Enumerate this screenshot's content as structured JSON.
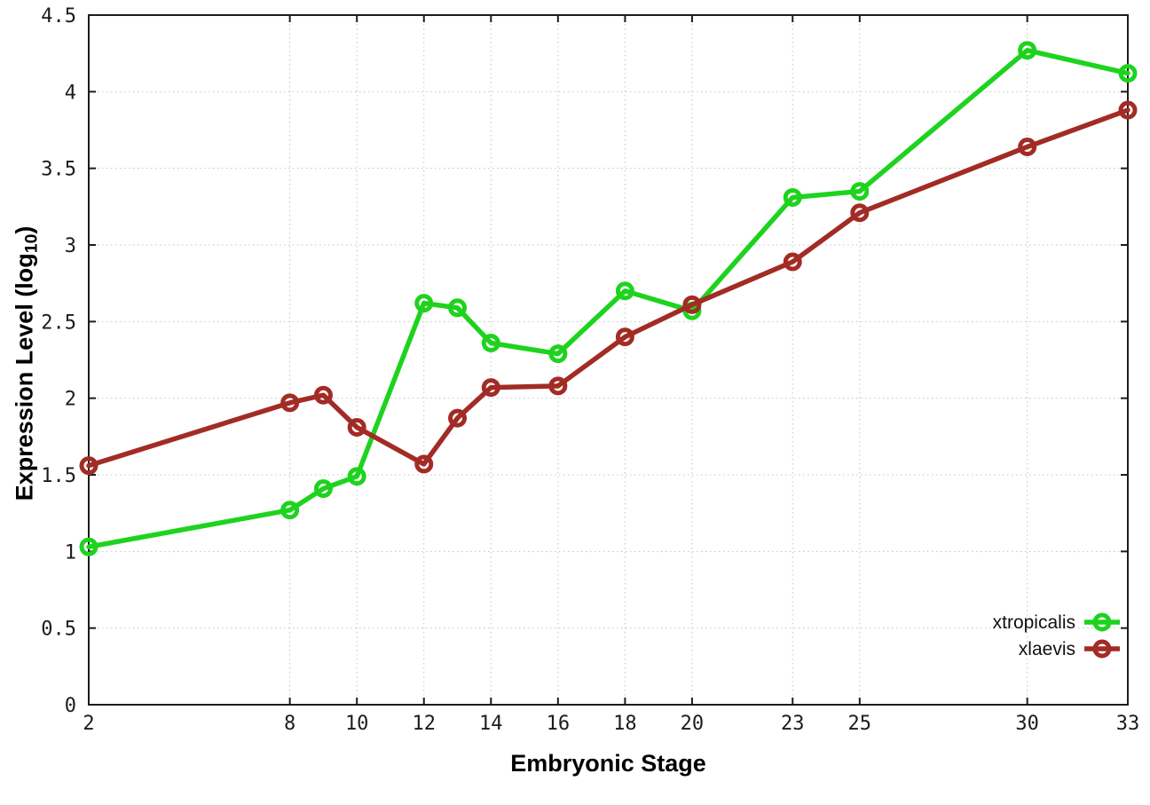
{
  "chart_data": {
    "type": "line",
    "title": "",
    "xlabel": "Embryonic Stage",
    "ylabel_parts": {
      "prefix": "Expression Level (log",
      "sub": "10",
      "suffix": ")"
    },
    "xlim": [
      2,
      33
    ],
    "ylim": [
      0,
      4.5
    ],
    "x_ticks": [
      2,
      8,
      10,
      12,
      14,
      16,
      18,
      20,
      23,
      25,
      30,
      33
    ],
    "y_ticks": [
      0,
      0.5,
      1,
      1.5,
      2,
      2.5,
      3,
      3.5,
      4,
      4.5
    ],
    "grid": true,
    "legend_position": "inside-bottom-right",
    "x": [
      2,
      8,
      9,
      10,
      12,
      13,
      14,
      16,
      18,
      20,
      23,
      25,
      30,
      33
    ],
    "series": [
      {
        "name": "xtropicalis",
        "color": "#1ed31e",
        "values": [
          1.03,
          1.27,
          1.41,
          1.49,
          2.62,
          2.59,
          2.36,
          2.29,
          2.7,
          2.57,
          3.31,
          3.35,
          4.27,
          4.12
        ]
      },
      {
        "name": "xlaevis",
        "color": "#a22c25",
        "values": [
          1.56,
          1.97,
          2.02,
          1.81,
          1.57,
          1.87,
          2.07,
          2.08,
          2.4,
          2.61,
          2.89,
          3.21,
          3.64,
          3.88
        ]
      }
    ]
  },
  "style_colors": {
    "grid": "#c3c3c3",
    "axis": "#1c1c1c",
    "tick_text": "#1c1c1c",
    "background": "#ffffff"
  }
}
